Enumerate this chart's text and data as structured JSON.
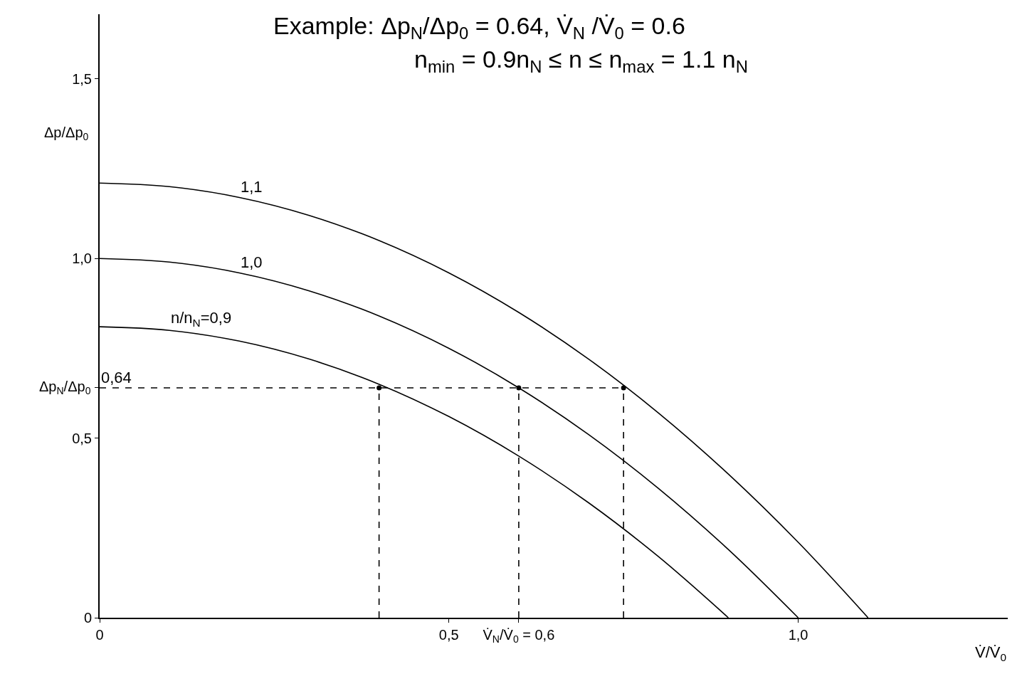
{
  "chart_data": {
    "type": "line",
    "title": "Example: Δp$_{N}$/Δp$_{0}$ = 0.64, V̇$_{N}$ /V̇$_{0}$ = 0.6",
    "subtitle": "n$_{min}$ = 0.9n$_{N}$ ≤ n ≤ n$_{max}$ = 1.1 n$_{N}$",
    "xlabel": "V̇/V̇$_{0}$",
    "ylabel": "Δp/Δp$_{0}$",
    "xlim": [
      0,
      1.3
    ],
    "ylim": [
      0,
      1.68
    ],
    "xticks": [
      {
        "value": 0,
        "label": "0"
      },
      {
        "value": 0.5,
        "label": "0,5"
      },
      {
        "value": 0.6,
        "label": "V̇$_{N}$/V̇$_{0}$ = 0,6"
      },
      {
        "value": 1.0,
        "label": "1,0"
      }
    ],
    "yticks": [
      {
        "value": 0,
        "label": "0"
      },
      {
        "value": 0.5,
        "label": "0,5"
      },
      {
        "value": 0.64,
        "label": null
      },
      {
        "value": 1.0,
        "label": "1,0"
      },
      {
        "value": 1.5,
        "label": "1,5"
      }
    ],
    "series": [
      {
        "color": "#000000",
        "x": [
          0,
          0.1,
          0.2,
          0.3,
          0.4,
          0.5,
          0.6,
          0.7,
          0.8,
          0.9,
          1.0,
          1.1
        ],
        "values": [
          1.21,
          1.2,
          1.17,
          1.12,
          1.05,
          0.96,
          0.85,
          0.72,
          0.57,
          0.4,
          0.21,
          0
        ]
      },
      {
        "color": "#000000",
        "x": [
          0,
          0.1,
          0.2,
          0.3,
          0.4,
          0.5,
          0.6,
          0.7,
          0.8,
          0.9,
          1.0
        ],
        "values": [
          1,
          0.99,
          0.96,
          0.91,
          0.84,
          0.75,
          0.64,
          0.51,
          0.36,
          0.19,
          0
        ]
      },
      {
        "color": "#000000",
        "x": [
          0,
          0.1,
          0.2,
          0.3,
          0.4,
          0.5,
          0.6,
          0.7,
          0.8,
          0.9
        ],
        "values": [
          0.81,
          0.8,
          0.77,
          0.72,
          0.65,
          0.56,
          0.45,
          0.32,
          0.17,
          0
        ]
      },
      {
        "type": "line",
        "line_style": "dashed",
        "color": "#000000",
        "x": [
          0,
          0.75
        ],
        "values": [
          0.64,
          0.64
        ]
      },
      {
        "type": "line",
        "line_style": "dashed",
        "color": "#000000",
        "x": [
          0.4,
          0.4
        ],
        "values": [
          0,
          0.64
        ]
      },
      {
        "type": "line",
        "line_style": "dashed",
        "color": "#000000",
        "x": [
          0.6,
          0.6
        ],
        "values": [
          0,
          0.64
        ]
      },
      {
        "type": "line",
        "line_style": "dashed",
        "color": "#000000",
        "x": [
          0.75,
          0.75
        ],
        "values": [
          0,
          0.64
        ]
      },
      {
        "type": "scatter",
        "marker": "circle",
        "color": "#000000",
        "x": [
          0.4,
          0.6,
          0.75
        ],
        "values": [
          0.64,
          0.64,
          0.64
        ]
      }
    ],
    "annotations": [
      {
        "text": "1,1",
        "x": 0.2,
        "y": 1.17
      },
      {
        "text": "1,0",
        "x": 0.2,
        "y": 0.96
      },
      {
        "text": "n/n$_{N}$=0,9",
        "x": 0.1,
        "y": 0.8
      },
      {
        "text": "0,64",
        "x": 0,
        "y": 0.64
      },
      "Δp$_{N}$/Δp$_{0}$"
    ]
  }
}
